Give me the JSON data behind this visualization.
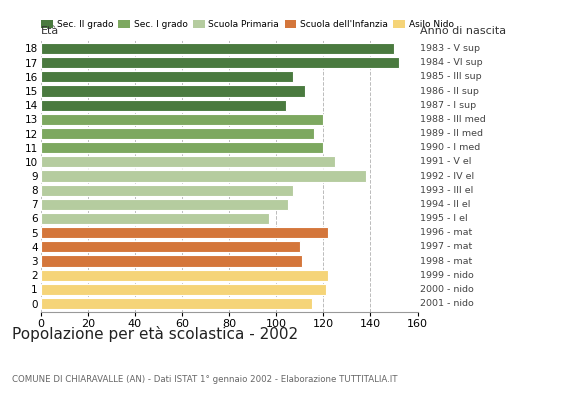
{
  "ages": [
    18,
    17,
    16,
    15,
    14,
    13,
    12,
    11,
    10,
    9,
    8,
    7,
    6,
    5,
    4,
    3,
    2,
    1,
    0
  ],
  "values": [
    150,
    152,
    107,
    112,
    104,
    120,
    116,
    120,
    125,
    138,
    107,
    105,
    97,
    122,
    110,
    111,
    122,
    121,
    115
  ],
  "right_labels": [
    "1983 - V sup",
    "1984 - VI sup",
    "1985 - III sup",
    "1986 - II sup",
    "1987 - I sup",
    "1988 - III med",
    "1989 - II med",
    "1990 - I med",
    "1991 - V el",
    "1992 - IV el",
    "1993 - III el",
    "1994 - II el",
    "1995 - I el",
    "1996 - mat",
    "1997 - mat",
    "1998 - mat",
    "1999 - nido",
    "2000 - nido",
    "2001 - nido"
  ],
  "colors": [
    "#4a7a3f",
    "#4a7a3f",
    "#4a7a3f",
    "#4a7a3f",
    "#4a7a3f",
    "#7da860",
    "#7da860",
    "#7da860",
    "#b5cc9f",
    "#b5cc9f",
    "#b5cc9f",
    "#b5cc9f",
    "#b5cc9f",
    "#d4763b",
    "#d4763b",
    "#d4763b",
    "#f5d478",
    "#f5d478",
    "#f5d478"
  ],
  "legend_labels": [
    "Sec. II grado",
    "Sec. I grado",
    "Scuola Primaria",
    "Scuola dell'Infanzia",
    "Asilo Nido"
  ],
  "legend_colors": [
    "#4a7a3f",
    "#7da860",
    "#b5cc9f",
    "#d4763b",
    "#f5d478"
  ],
  "title": "Popolazione per età scolastica - 2002",
  "subtitle": "COMUNE DI CHIARAVALLE (AN) - Dati ISTAT 1° gennaio 2002 - Elaborazione TUTTITALIA.IT",
  "label_left": "Età",
  "label_right": "Anno di nascita",
  "xlim": [
    0,
    160
  ],
  "xticks": [
    0,
    20,
    40,
    60,
    80,
    100,
    120,
    140,
    160
  ],
  "background_color": "#ffffff",
  "grid_color": "#bbbbbb"
}
